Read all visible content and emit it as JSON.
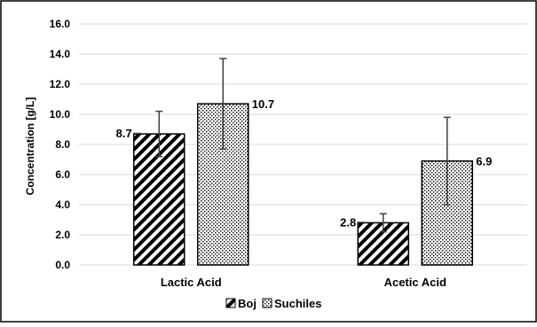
{
  "chart_data": {
    "type": "bar",
    "categories": [
      "Lactic Acid",
      "Acetic Acid"
    ],
    "series": [
      {
        "name": "Boj",
        "values": [
          8.7,
          2.8
        ],
        "error": [
          1.5,
          0.6
        ],
        "pattern": "diagonal-stripes"
      },
      {
        "name": "Suchiles",
        "values": [
          10.7,
          6.9
        ],
        "error": [
          3.0,
          2.9
        ],
        "pattern": "dots"
      }
    ],
    "data_labels": [
      [
        "8.7",
        "2.8"
      ],
      [
        "10.7",
        "6.9"
      ]
    ],
    "ylabel": "Concentration [g/L]",
    "ylim": [
      0,
      16
    ],
    "yticks": [
      "0.0",
      "2.0",
      "4.0",
      "6.0",
      "8.0",
      "10.0",
      "12.0",
      "14.0",
      "16.0"
    ],
    "grid": true,
    "legend": "bottom-center",
    "colors": {
      "bar_stroke": "#000000",
      "grid": "#d9d9d9",
      "error_bar": "#404040",
      "border": "#000000"
    }
  }
}
